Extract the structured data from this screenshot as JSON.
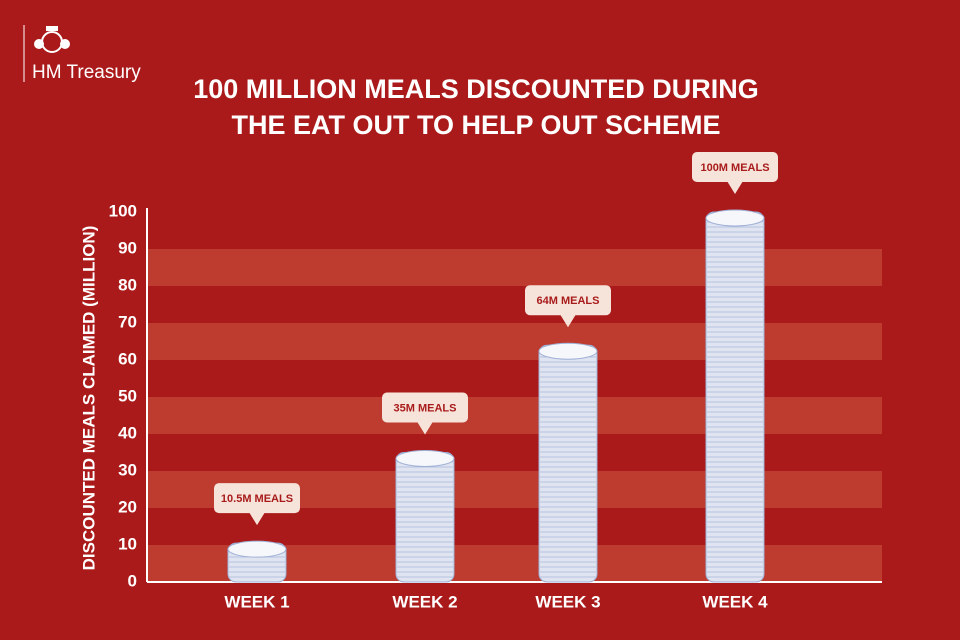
{
  "header": {
    "logo": "HM Treasury"
  },
  "chart_data": {
    "type": "bar",
    "title": [
      "100 MILLION MEALS DISCOUNTED DURING",
      "THE EAT OUT TO HELP OUT SCHEME"
    ],
    "y_label": "DISCOUNTED MEALS CLAIMED (MILLION)",
    "categories": [
      "WEEK 1",
      "WEEK 2",
      "WEEK 3",
      "WEEK 4"
    ],
    "values": [
      10.5,
      35,
      64,
      100
    ],
    "value_labels": [
      "10.5M MEALS",
      "35M MEALS",
      "64M MEALS",
      "100M MEALS"
    ],
    "color": "#dfe4f0",
    "ylim": [
      0,
      100
    ],
    "yticks": [
      0,
      10,
      20,
      30,
      40,
      50,
      60,
      70,
      80,
      90,
      100
    ],
    "grid": true
  }
}
